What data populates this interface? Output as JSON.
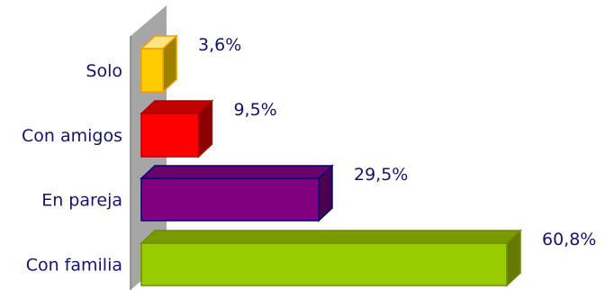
{
  "chart_data": {
    "type": "bar",
    "orientation": "horizontal",
    "style": "3d",
    "categories": [
      "Solo",
      "Con amigos",
      "En pareja",
      "Con familia"
    ],
    "values": [
      3.6,
      9.5,
      29.5,
      60.8
    ],
    "value_labels": [
      "3,6%",
      "9,5%",
      "29,5%",
      "60,8%"
    ],
    "unit": "%",
    "colors": [
      {
        "front": "#ffcc00",
        "top": "#ffe680",
        "side": "#a08000",
        "edge": "#ff9900"
      },
      {
        "front": "#ff0000",
        "top": "#c00000",
        "side": "#8b0000",
        "edge": "#b00000"
      },
      {
        "front": "#800080",
        "top": "#6a006a",
        "side": "#4a004a",
        "edge": "#000080"
      },
      {
        "front": "#99cc00",
        "top": "#7a9a00",
        "side": "#667a00",
        "edge": "#6b8e00"
      }
    ],
    "wall_color": "#a6a6a6",
    "title": "",
    "xlabel": "",
    "ylabel": "",
    "legend": false,
    "grid": false
  }
}
